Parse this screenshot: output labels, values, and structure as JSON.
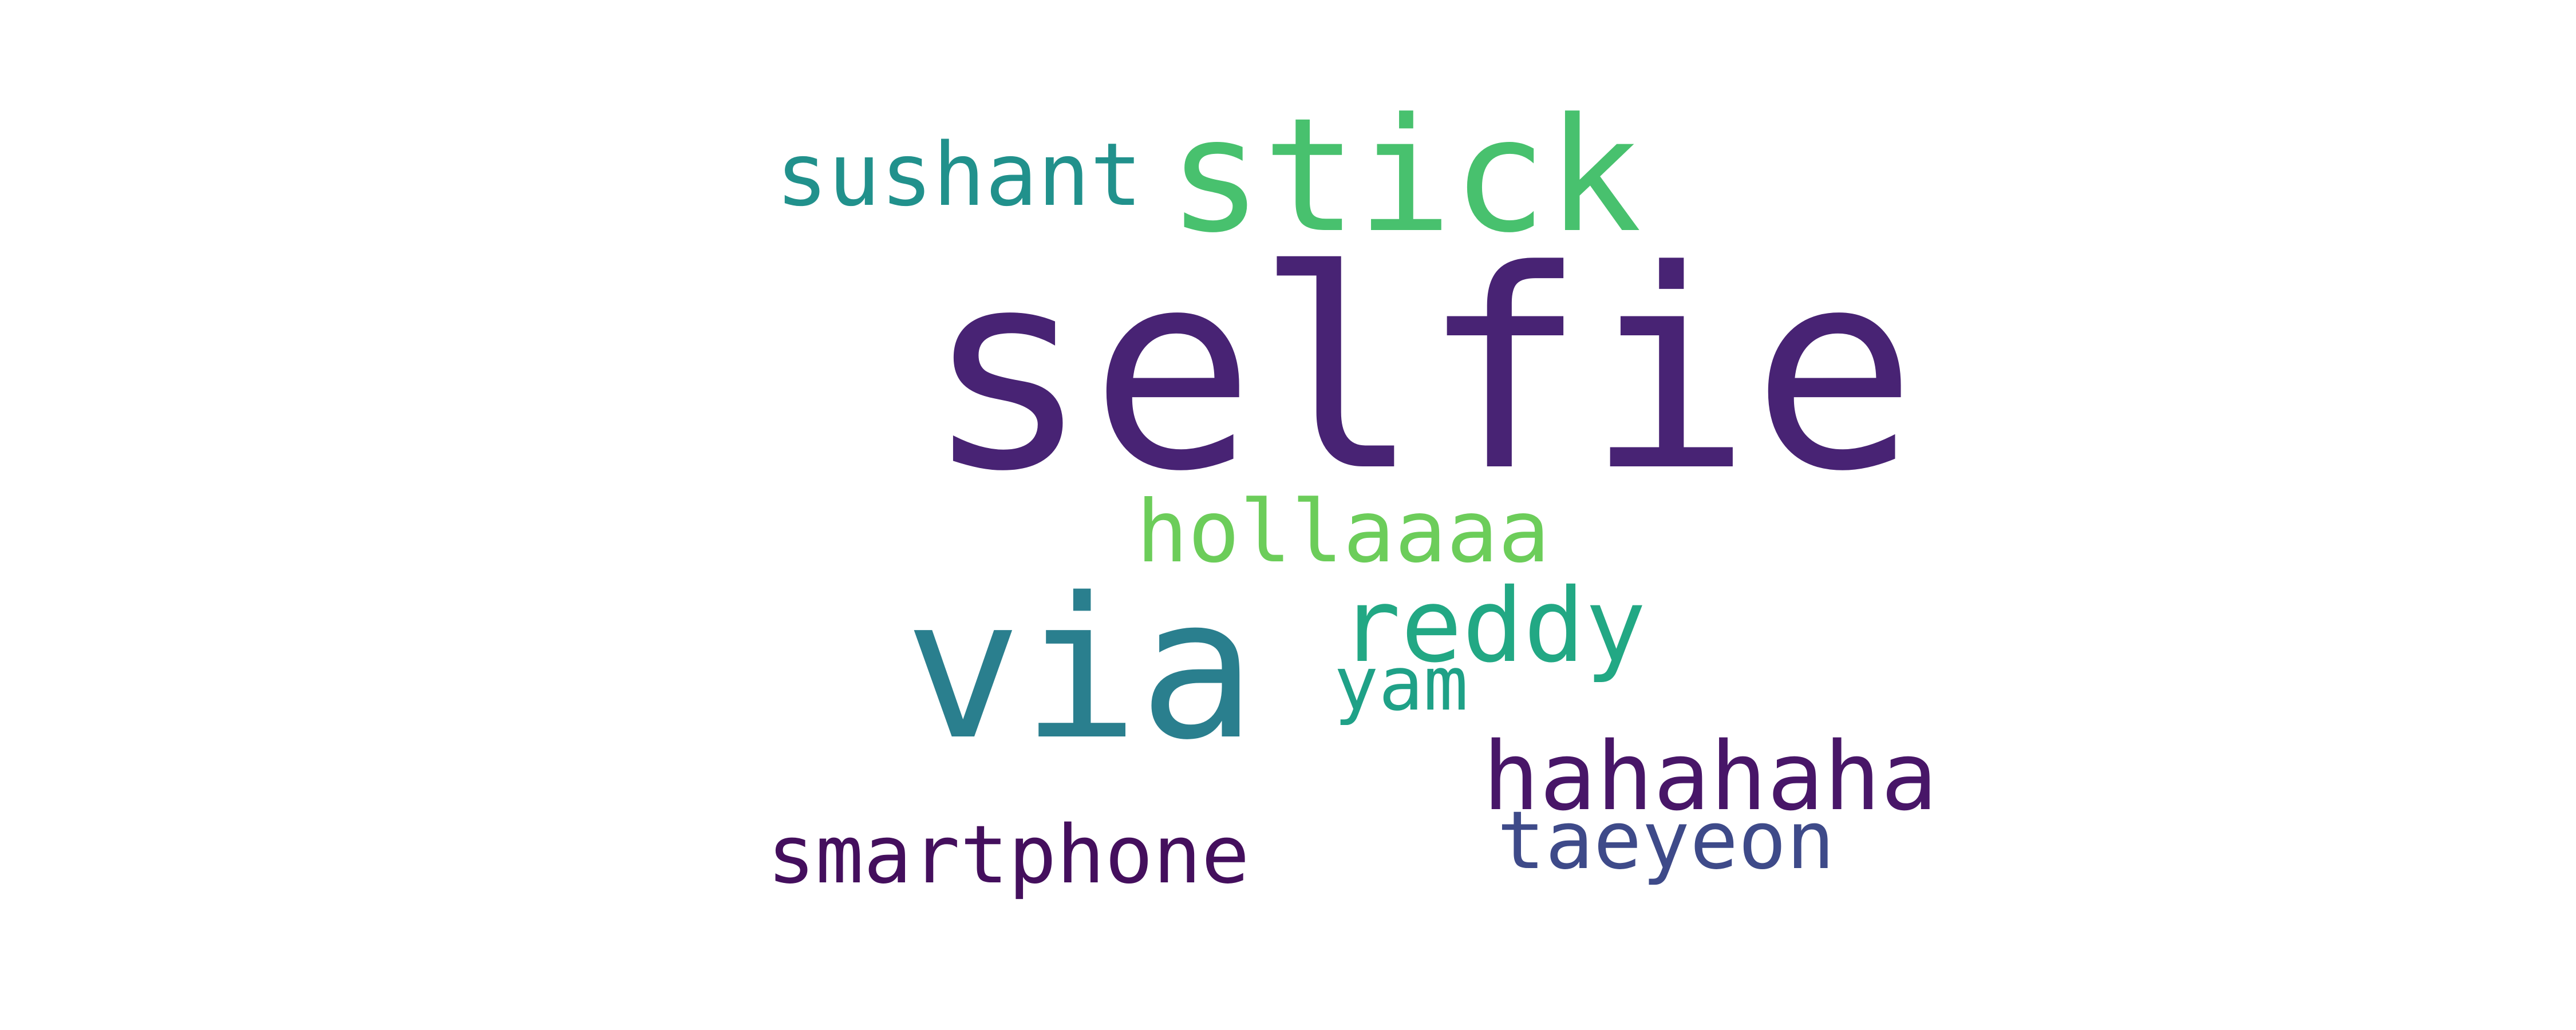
{
  "word_cloud": {
    "words": [
      {
        "key": "selfie",
        "text": "selfie",
        "color": "#482374"
      },
      {
        "key": "stick",
        "text": "stick",
        "color": "#48c16e"
      },
      {
        "key": "sushant",
        "text": "sushant",
        "color": "#21918c"
      },
      {
        "key": "via",
        "text": "via",
        "color": "#2a7f8e"
      },
      {
        "key": "hollaaaa",
        "text": "hollaaaa",
        "color": "#6ccd5a"
      },
      {
        "key": "reddy",
        "text": "reddy",
        "color": "#22a884"
      },
      {
        "key": "yam",
        "text": "yam",
        "color": "#1fa187"
      },
      {
        "key": "hahahaha",
        "text": "hahahaha",
        "color": "#481668"
      },
      {
        "key": "taeyeon",
        "text": "taeyeon",
        "color": "#3e4a89"
      },
      {
        "key": "smartphone",
        "text": "smartphone",
        "color": "#440f5d"
      }
    ]
  }
}
